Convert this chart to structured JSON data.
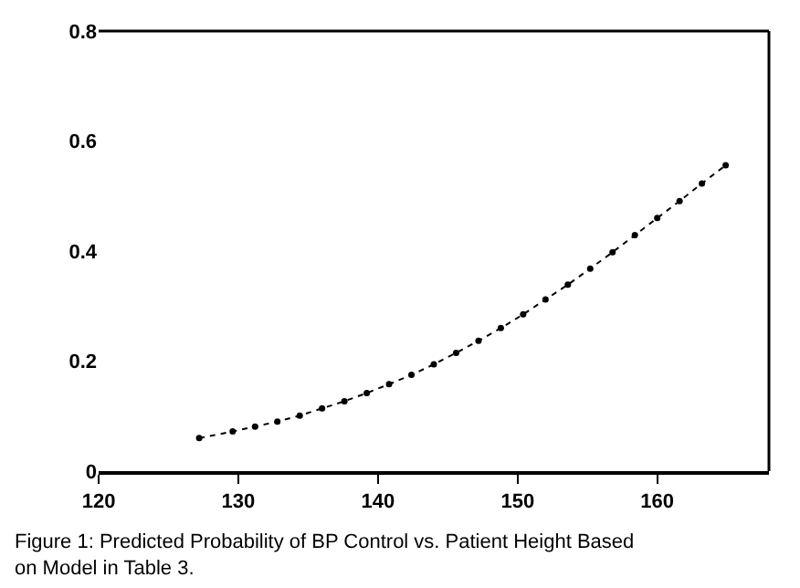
{
  "chart_data": {
    "type": "line",
    "x": [
      127.2,
      129.6,
      131.2,
      132.8,
      134.4,
      136,
      137.6,
      139.2,
      140.8,
      142.4,
      144,
      145.6,
      147.2,
      148.8,
      150.4,
      152,
      153.6,
      155.2,
      156.8,
      158.4,
      160,
      161.6,
      163.2,
      164.9
    ],
    "series": [
      {
        "color": "#000000",
        "values": [
          0.06,
          0.072,
          0.081,
          0.09,
          0.101,
          0.114,
          0.127,
          0.142,
          0.158,
          0.175,
          0.194,
          0.215,
          0.237,
          0.26,
          0.285,
          0.312,
          0.339,
          0.368,
          0.398,
          0.429,
          0.46,
          0.491,
          0.523,
          0.556
        ]
      }
    ],
    "xlim": [
      120,
      168
    ],
    "xticks": [
      120,
      130,
      140,
      150,
      160
    ],
    "ylim": [
      0,
      0.8
    ],
    "yticks": [
      0,
      0.2,
      0.4,
      0.6,
      0.8
    ],
    "marker": "circle",
    "line_style": "dotted",
    "annotations": [
      "Figure 1: Predicted Probability of BP Control vs. Patient Height Based on Model in Table 3."
    ]
  }
}
